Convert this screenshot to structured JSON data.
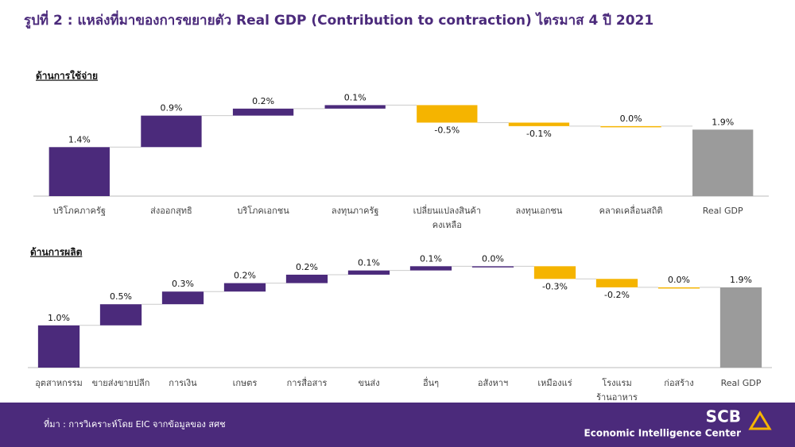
{
  "header": {
    "title": "รูปที่ 2 : แหล่งที่มาของการขยายตัว Real GDP (Contribution to contraction) ไตรมาส 4 ปี 2021"
  },
  "chart_data": [
    {
      "type": "waterfall",
      "title": "ด้านการใช้จ่าย",
      "categories": [
        "บริโภคภาครัฐ",
        "ส่งออกสุทธิ",
        "บริโภคเอกชน",
        "ลงทุนภาครัฐ",
        [
          "เปลี่ยนแปลงสินค้า",
          "คงเหลือ"
        ],
        "ลงทุนเอกชน",
        "คลาดเคลื่อนสถิติ",
        "Real GDP"
      ],
      "values": [
        1.4,
        0.9,
        0.2,
        0.1,
        -0.5,
        -0.1,
        0.0,
        1.9
      ],
      "value_labels": [
        "1.4%",
        "0.9%",
        "0.2%",
        "0.1%",
        "-0.5%",
        "-0.1%",
        "0.0%",
        "1.9%"
      ],
      "measure": [
        "relative",
        "relative",
        "relative",
        "relative",
        "relative",
        "relative",
        "relative",
        "total"
      ],
      "colors": [
        "#4b2a7b",
        "#4b2a7b",
        "#4b2a7b",
        "#4b2a7b",
        "#f5b400",
        "#f5b400",
        "#f5b400",
        "#9b9b9b"
      ],
      "ylim": [
        0,
        2.7
      ]
    },
    {
      "type": "waterfall",
      "title": "ด้านการผลิต",
      "categories": [
        "อุตสาหกรรม",
        "ขายส่งขายปลีก",
        "การเงิน",
        "เกษตร",
        "การสื่อสาร",
        "ขนส่ง",
        "อื่นๆ",
        "อสังหาฯ",
        "เหมืองแร่",
        [
          "โรงแรม",
          "ร้านอาหาร"
        ],
        "ก่อสร้าง",
        "Real GDP"
      ],
      "values": [
        1.0,
        0.5,
        0.3,
        0.2,
        0.2,
        0.1,
        0.1,
        0.0,
        -0.3,
        -0.2,
        0.0,
        1.9
      ],
      "value_labels": [
        "1.0%",
        "0.5%",
        "0.3%",
        "0.2%",
        "0.2%",
        "0.1%",
        "0.1%",
        "0.0%",
        "-0.3%",
        "-0.2%",
        "0.0%",
        "1.9%"
      ],
      "measure": [
        "relative",
        "relative",
        "relative",
        "relative",
        "relative",
        "relative",
        "relative",
        "relative",
        "relative",
        "relative",
        "relative",
        "total"
      ],
      "colors": [
        "#4b2a7b",
        "#4b2a7b",
        "#4b2a7b",
        "#4b2a7b",
        "#4b2a7b",
        "#4b2a7b",
        "#4b2a7b",
        "#4b2a7b",
        "#f5b400",
        "#f5b400",
        "#f5b400",
        "#9b9b9b"
      ],
      "ylim": [
        0,
        2.5
      ]
    }
  ],
  "footer": {
    "source": "ที่มา : การวิเคราะห์โดย EIC จากข้อมูลของ สศช",
    "logo": "SCB",
    "logo_subtitle": "Economic Intelligence Center"
  }
}
